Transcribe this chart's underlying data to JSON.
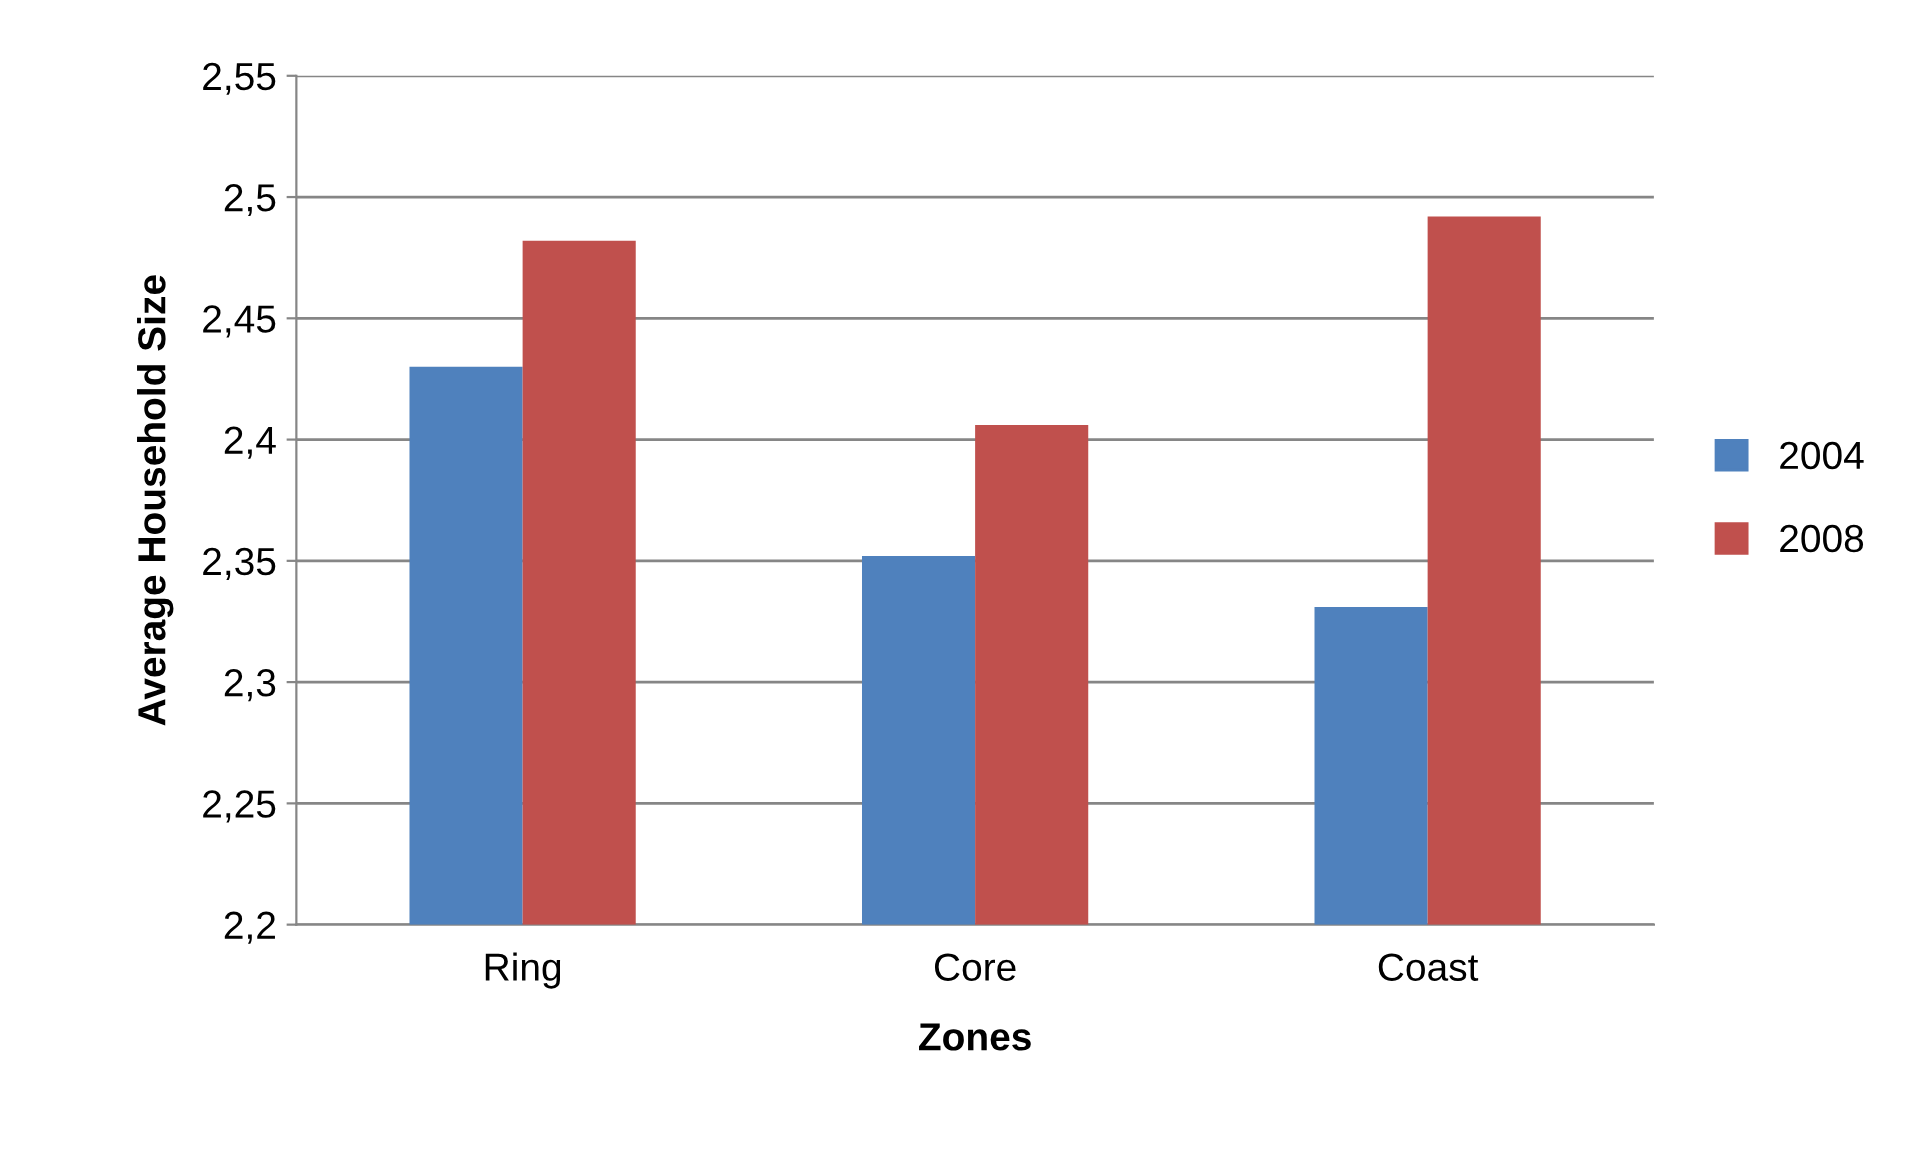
{
  "chart_data": {
    "type": "bar",
    "xlabel": "Zones",
    "ylabel": "Average Household Size",
    "categories": [
      "Ring",
      "Core",
      "Coast"
    ],
    "series": [
      {
        "name": "2004",
        "color": "#4f81bd",
        "values": [
          2.43,
          2.352,
          2.331
        ]
      },
      {
        "name": "2008",
        "color": "#c0504d",
        "values": [
          2.482,
          2.406,
          2.492
        ]
      }
    ],
    "ylim": [
      2.2,
      2.55
    ],
    "yticks": [
      {
        "value": 2.2,
        "label": "2,2"
      },
      {
        "value": 2.25,
        "label": "2,25"
      },
      {
        "value": 2.3,
        "label": "2,3"
      },
      {
        "value": 2.35,
        "label": "2,35"
      },
      {
        "value": 2.4,
        "label": "2,4"
      },
      {
        "value": 2.45,
        "label": "2,45"
      },
      {
        "value": 2.5,
        "label": "2,5"
      },
      {
        "value": 2.55,
        "label": "2,55"
      }
    ],
    "grid": "y",
    "legend": "right"
  }
}
